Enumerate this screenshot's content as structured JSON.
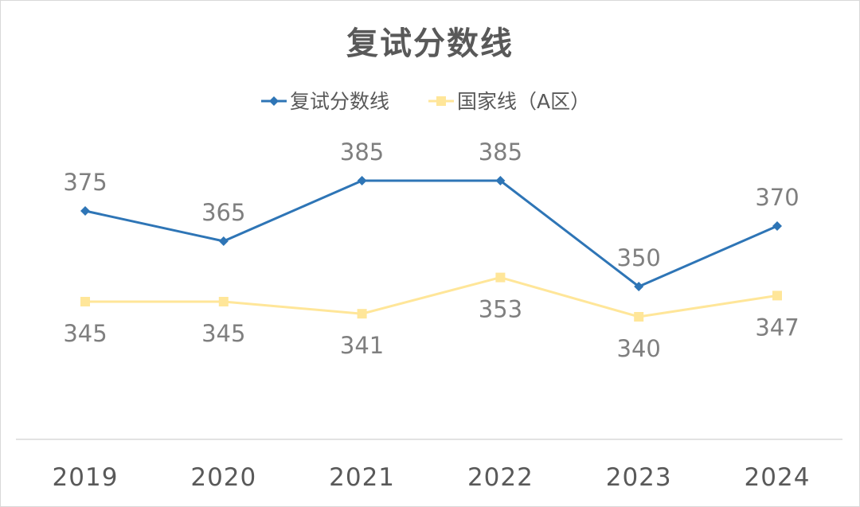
{
  "chart_data": {
    "type": "line",
    "title": "复试分数线",
    "categories": [
      "2019",
      "2020",
      "2021",
      "2022",
      "2023",
      "2024"
    ],
    "series": [
      {
        "name": "复试分数线",
        "color": "#2e75b6",
        "marker": "diamond",
        "values": [
          375,
          365,
          385,
          385,
          350,
          370
        ]
      },
      {
        "name": "国家线（A区）",
        "color": "#ffe699",
        "marker": "square",
        "values": [
          345,
          345,
          341,
          353,
          340,
          347
        ]
      }
    ],
    "legend": "top-center",
    "grid": false
  }
}
